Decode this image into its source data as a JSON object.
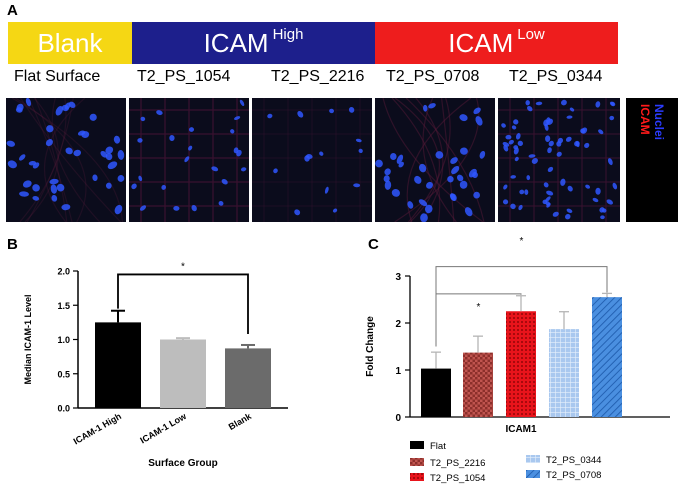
{
  "panel_a": {
    "letter": "A",
    "bands": [
      {
        "text": "Blank",
        "sup": "",
        "color": "#f5d714"
      },
      {
        "text": "ICAM",
        "sup": "High",
        "color": "#1d1f8c"
      },
      {
        "text": "ICAM",
        "sup": "Low",
        "color": "#ee1d1d"
      }
    ],
    "surface_labels": [
      "Flat Surface",
      "T2_PS_1054",
      "T2_PS_2216",
      "T2_PS_0708",
      "T2_PS_0344"
    ],
    "legend": {
      "nuclei": "Nuclei",
      "icam": "ICAM",
      "nuclei_color": "#2b3cff",
      "icam_color": "#ff1a1a"
    }
  },
  "chart_data": [
    {
      "panel": "B",
      "type": "bar",
      "title": "",
      "categories": [
        "ICAM-1 High",
        "ICAM-1 Low",
        "Blank"
      ],
      "values": [
        1.25,
        1.0,
        0.87
      ],
      "errors": [
        0.17,
        0.02,
        0.05
      ],
      "colors": [
        "#000000",
        "#bdbdbd",
        "#6b6b6b"
      ],
      "xlabel": "Surface Group",
      "ylabel": "Median ICAM-1 Level",
      "ylim": [
        0.0,
        2.0
      ],
      "yticks": [
        "0.0",
        "0.5",
        "1.0",
        "1.5",
        "2.0"
      ],
      "significance": [
        {
          "from": "ICAM-1 High",
          "to": "Blank",
          "label": "*"
        }
      ]
    },
    {
      "panel": "C",
      "type": "bar",
      "title": "",
      "categories": [
        "Flat",
        "T2_PS_2216",
        "T2_PS_1054",
        "T2_PS_0344",
        "T2_PS_0708"
      ],
      "values": [
        1.03,
        1.37,
        2.25,
        1.87,
        2.55
      ],
      "errors": [
        0.35,
        0.35,
        0.33,
        0.37,
        0.08
      ],
      "colors": [
        "#000000",
        "#c0544f",
        "#e8141b",
        "#8fb8ea",
        "#4a8fe0"
      ],
      "patterns": [
        "solid",
        "checker",
        "dots",
        "grid",
        "hatch"
      ],
      "xlabel": "ICAM1",
      "ylabel": "Fold Change",
      "ylim": [
        0,
        3
      ],
      "yticks": [
        "0",
        "1",
        "2",
        "3"
      ],
      "significance": [
        {
          "from": "Flat",
          "to": "T2_PS_1054",
          "label": "*"
        },
        {
          "from": "Flat",
          "to": "T2_PS_0708",
          "label": "*"
        }
      ],
      "legend_order": [
        "Flat",
        "T2_PS_0344",
        "T2_PS_2216",
        "T2_PS_1054",
        "T2_PS_0708"
      ]
    }
  ]
}
